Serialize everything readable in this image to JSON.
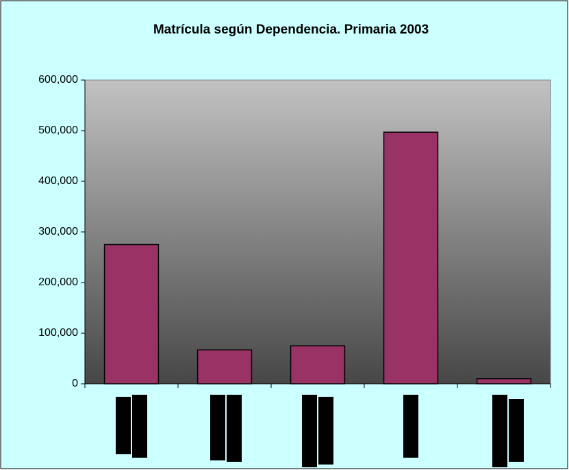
{
  "chart_data": {
    "type": "bar",
    "title": "Matrícula según Dependencia. Primaria 2003",
    "categories": [
      null,
      null,
      null,
      null,
      null
    ],
    "values": [
      275000,
      67000,
      75000,
      497000,
      10000
    ],
    "color": "#993366",
    "ylim": [
      0,
      600000
    ],
    "yticks": [
      0,
      {
        "value": 100000,
        "label": "100,000"
      },
      {
        "value": 200000,
        "label": "200,000"
      },
      {
        "value": 300000,
        "label": "300,000"
      },
      {
        "value": 400000,
        "label": "400,000"
      },
      {
        "value": 500000,
        "label": "500,000"
      },
      {
        "value": 600000,
        "label": "600,000"
      }
    ],
    "grid": false
  }
}
